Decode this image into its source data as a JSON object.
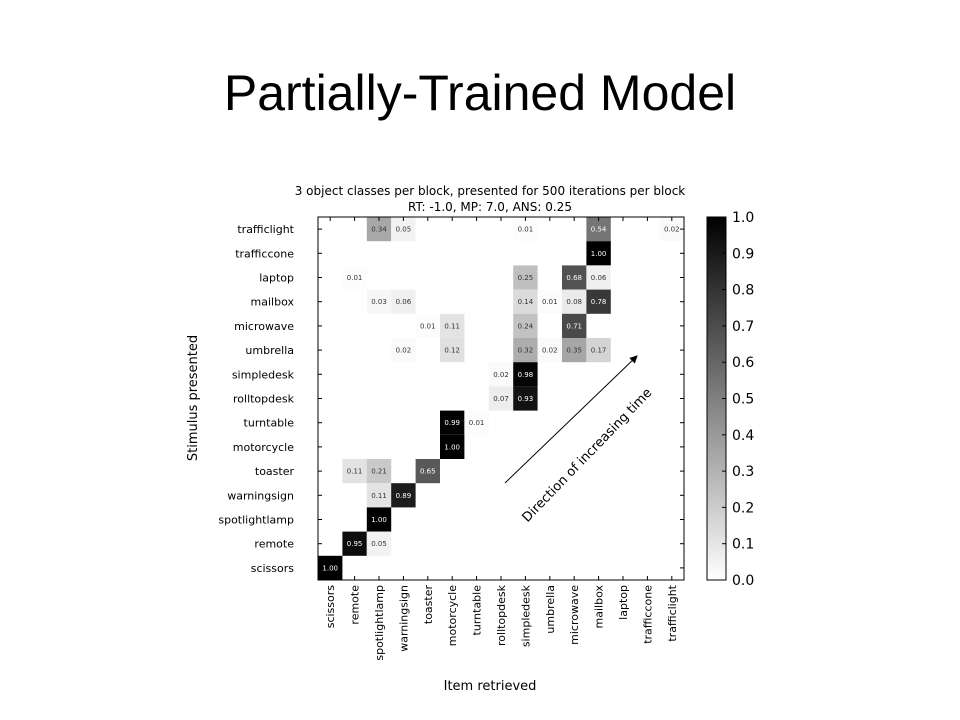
{
  "slide_title": "Partially-Trained Model",
  "chart_data": {
    "type": "heatmap",
    "title": "3 object classes per block, presented for 500 iterations per block",
    "subtitle": "RT: -1.0, MP: 7.0, ANS: 0.25",
    "x_label": "Item retrieved",
    "y_label": "Stimulus presented",
    "annotation": "Direction of increasing time",
    "x_categories": [
      "scissors",
      "remote",
      "spotlightlamp",
      "warningsign",
      "toaster",
      "motorcycle",
      "turntable",
      "rolltopdesk",
      "simpledesk",
      "umbrella",
      "microwave",
      "mailbox",
      "laptop",
      "trafficcone",
      "trafficlight"
    ],
    "y_categories": [
      "trafficlight",
      "trafficcone",
      "laptop",
      "mailbox",
      "microwave",
      "umbrella",
      "simpledesk",
      "rolltopdesk",
      "turntable",
      "motorcycle",
      "toaster",
      "warningsign",
      "spotlightlamp",
      "remote",
      "scissors"
    ],
    "values": [
      [
        null,
        null,
        0.34,
        0.05,
        null,
        null,
        null,
        null,
        0.01,
        null,
        null,
        0.54,
        null,
        null,
        0.02
      ],
      [
        null,
        null,
        null,
        null,
        null,
        null,
        null,
        null,
        null,
        null,
        null,
        1,
        null,
        null,
        null
      ],
      [
        null,
        0.01,
        null,
        null,
        null,
        null,
        null,
        null,
        0.25,
        null,
        0.68,
        0.06,
        null,
        null,
        null
      ],
      [
        null,
        null,
        0.03,
        0.06,
        null,
        null,
        null,
        null,
        0.14,
        0.01,
        0.08,
        0.78,
        null,
        null,
        null
      ],
      [
        null,
        null,
        null,
        null,
        0.01,
        0.11,
        null,
        null,
        0.24,
        null,
        0.71,
        null,
        null,
        null,
        null
      ],
      [
        null,
        null,
        null,
        0.02,
        null,
        0.12,
        null,
        null,
        0.32,
        0.02,
        0.35,
        0.17,
        null,
        null,
        null
      ],
      [
        null,
        null,
        null,
        null,
        null,
        null,
        null,
        0.02,
        0.98,
        null,
        null,
        null,
        null,
        null,
        null
      ],
      [
        null,
        null,
        null,
        null,
        null,
        null,
        null,
        0.07,
        0.93,
        null,
        null,
        null,
        null,
        null,
        null
      ],
      [
        null,
        null,
        null,
        null,
        null,
        0.99,
        0.01,
        null,
        null,
        null,
        null,
        null,
        null,
        null,
        null
      ],
      [
        null,
        null,
        null,
        null,
        null,
        1,
        null,
        null,
        null,
        null,
        null,
        null,
        null,
        null,
        null
      ],
      [
        null,
        0.11,
        0.21,
        null,
        0.65,
        null,
        null,
        null,
        null,
        null,
        null,
        null,
        null,
        null,
        null
      ],
      [
        null,
        null,
        0.11,
        0.89,
        null,
        null,
        null,
        null,
        null,
        null,
        null,
        null,
        null,
        null,
        null
      ],
      [
        null,
        null,
        1,
        null,
        null,
        null,
        null,
        null,
        null,
        null,
        null,
        null,
        null,
        null,
        null
      ],
      [
        null,
        0.95,
        0.05,
        null,
        null,
        null,
        null,
        null,
        null,
        null,
        null,
        null,
        null,
        null,
        null
      ],
      [
        1,
        null,
        null,
        null,
        null,
        null,
        null,
        null,
        null,
        null,
        null,
        null,
        null,
        null,
        null
      ]
    ],
    "value_labels": [
      [
        null,
        null,
        "0.34",
        "0.05",
        null,
        null,
        null,
        null,
        "0.01",
        null,
        null,
        "0.54",
        null,
        null,
        "0.02"
      ],
      [
        null,
        null,
        null,
        null,
        null,
        null,
        null,
        null,
        null,
        null,
        null,
        "1.00",
        null,
        null,
        null
      ],
      [
        null,
        "0.01",
        null,
        null,
        null,
        null,
        null,
        null,
        "0.25",
        null,
        "0.68",
        "0.06",
        null,
        null,
        null
      ],
      [
        null,
        null,
        "0.03",
        "0.06",
        null,
        null,
        null,
        null,
        "0.14",
        "0.01",
        "0.08",
        "0.78",
        null,
        null,
        null
      ],
      [
        null,
        null,
        null,
        null,
        "0.01",
        "0.11",
        null,
        null,
        "0.24",
        null,
        "0.71",
        null,
        null,
        null,
        null
      ],
      [
        null,
        null,
        null,
        "0.02",
        null,
        "0.12",
        null,
        null,
        "0.32",
        "0.02",
        "0.35",
        "0.17",
        null,
        null,
        null
      ],
      [
        null,
        null,
        null,
        null,
        null,
        null,
        null,
        "0.02",
        "0.98",
        null,
        null,
        null,
        null,
        null,
        null
      ],
      [
        null,
        null,
        null,
        null,
        null,
        null,
        null,
        "0.07",
        "0.93",
        null,
        null,
        null,
        null,
        null,
        null
      ],
      [
        null,
        null,
        null,
        null,
        null,
        "0.99",
        "0.01",
        null,
        null,
        null,
        null,
        null,
        null,
        null,
        null
      ],
      [
        null,
        null,
        null,
        null,
        null,
        "1.00",
        null,
        null,
        null,
        null,
        null,
        null,
        null,
        null,
        null
      ],
      [
        null,
        "0.11",
        "0.21",
        null,
        "0.65",
        null,
        null,
        null,
        null,
        null,
        null,
        null,
        null,
        null,
        null
      ],
      [
        null,
        null,
        "0.11",
        "0.89",
        null,
        null,
        null,
        null,
        null,
        null,
        null,
        null,
        null,
        null,
        null
      ],
      [
        null,
        null,
        "1.00",
        null,
        null,
        null,
        null,
        null,
        null,
        null,
        null,
        null,
        null,
        null,
        null
      ],
      [
        null,
        "0.95",
        "0.05",
        null,
        null,
        null,
        null,
        null,
        null,
        null,
        null,
        null,
        null,
        null,
        null
      ],
      [
        "1.00",
        null,
        null,
        null,
        null,
        null,
        null,
        null,
        null,
        null,
        null,
        null,
        null,
        null,
        null
      ]
    ],
    "colormap": "gray_r",
    "clim": [
      0,
      1
    ],
    "colorbar_ticks": [
      {
        "value": 0,
        "label": "0.0"
      },
      0.1,
      0.2,
      0.3,
      0.4,
      0.5,
      0.6,
      0.7,
      0.8,
      0.9,
      {
        "value": 1,
        "label": "1.0"
      }
    ]
  }
}
